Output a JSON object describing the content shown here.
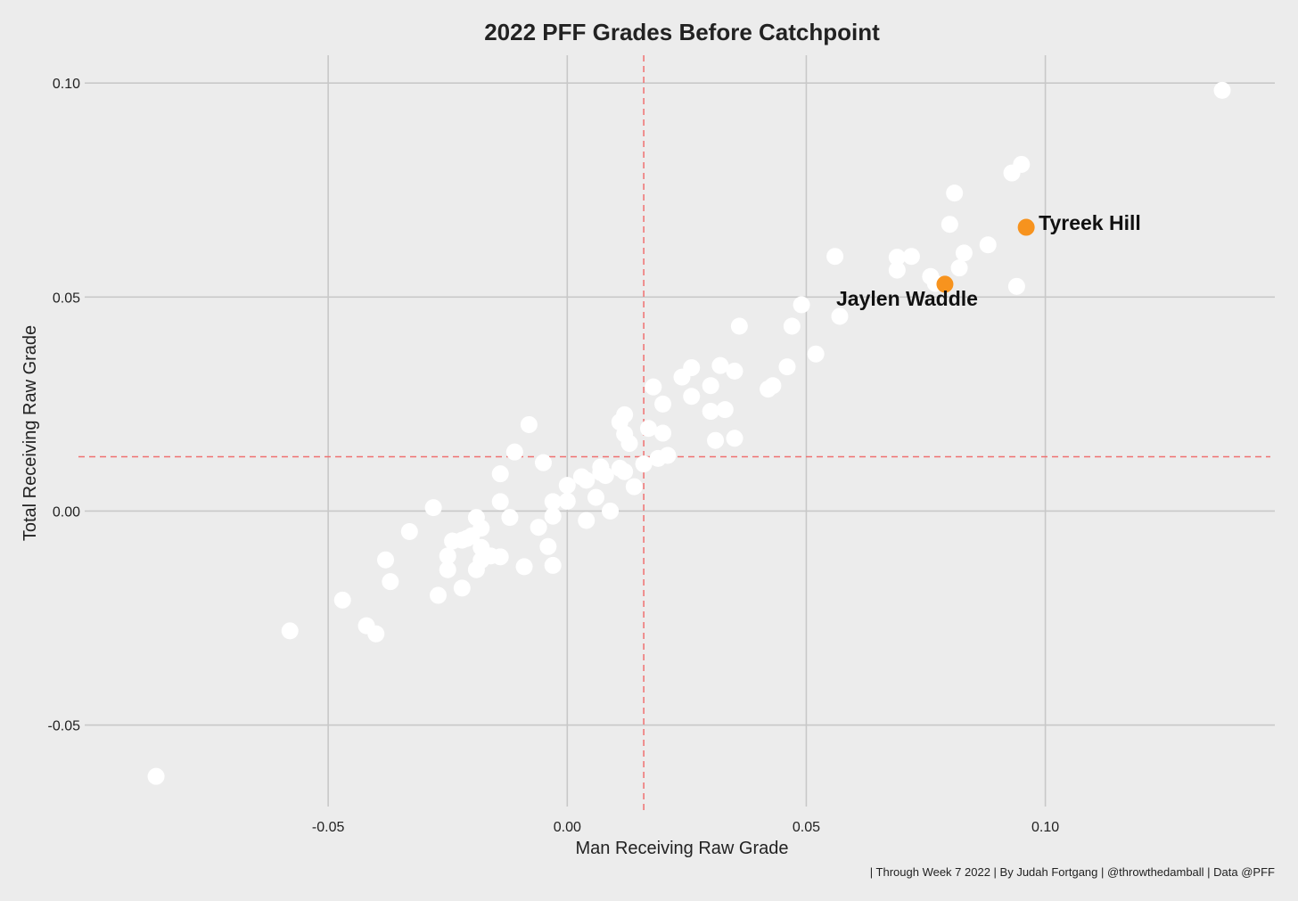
{
  "chart_data": {
    "type": "scatter",
    "title": "2022 PFF Grades Before Catchpoint",
    "xlabel": "Man Receiving Raw Grade",
    "ylabel": "Total Receiving Raw Grade",
    "caption": "| Through Week 7 2022 | By Judah Fortgang | @throwthedamball | Data @PFF",
    "xlim": [
      -0.1,
      0.148
    ],
    "ylim": [
      -0.068,
      0.1065
    ],
    "x_ticks": [
      {
        "value": -0.05,
        "label": "-0.05"
      },
      {
        "value": 0.0,
        "label": "0.00"
      },
      {
        "value": 0.05,
        "label": "0.05"
      },
      {
        "value": 0.1,
        "label": "0.10"
      }
    ],
    "y_ticks": [
      {
        "value": -0.05,
        "label": "-0.05"
      },
      {
        "value": 0.0,
        "label": "0.00"
      },
      {
        "value": 0.05,
        "label": "0.05"
      },
      {
        "value": 0.1,
        "label": "0.10"
      }
    ],
    "grid": true,
    "reference_lines": {
      "x": 0.016,
      "y": 0.0127,
      "color": "#f07070",
      "style": "dashed"
    },
    "colors": {
      "background": "#ececec",
      "grid": "#c8c8c8",
      "point": "#ffffff",
      "highlight": "#f7931e"
    },
    "points": [
      [
        -0.086,
        -0.062
      ],
      [
        -0.058,
        -0.028
      ],
      [
        -0.047,
        -0.0208
      ],
      [
        -0.042,
        -0.0268
      ],
      [
        -0.04,
        -0.0287
      ],
      [
        -0.038,
        -0.0114
      ],
      [
        -0.037,
        -0.0165
      ],
      [
        -0.033,
        -0.0048
      ],
      [
        -0.028,
        0.0008
      ],
      [
        -0.027,
        -0.0197
      ],
      [
        -0.025,
        -0.0105
      ],
      [
        -0.025,
        -0.0137
      ],
      [
        -0.024,
        -0.007
      ],
      [
        -0.022,
        -0.0068
      ],
      [
        -0.022,
        -0.018
      ],
      [
        -0.021,
        -0.0064
      ],
      [
        -0.02,
        -0.0058
      ],
      [
        -0.019,
        -0.0015
      ],
      [
        -0.019,
        -0.0137
      ],
      [
        -0.018,
        -0.0085
      ],
      [
        -0.018,
        -0.0115
      ],
      [
        -0.018,
        -0.004
      ],
      [
        -0.016,
        -0.0105
      ],
      [
        -0.014,
        -0.0107
      ],
      [
        -0.014,
        0.0087
      ],
      [
        -0.014,
        0.0022
      ],
      [
        -0.012,
        -0.0015
      ],
      [
        -0.011,
        0.0138
      ],
      [
        -0.009,
        -0.013
      ],
      [
        -0.008,
        0.0202
      ],
      [
        -0.006,
        -0.0038
      ],
      [
        -0.005,
        0.0113
      ],
      [
        -0.004,
        -0.0083
      ],
      [
        -0.003,
        0.0022
      ],
      [
        -0.003,
        -0.0012
      ],
      [
        -0.003,
        -0.0127
      ],
      [
        0.0,
        0.006
      ],
      [
        0.0,
        0.0023
      ],
      [
        0.003,
        0.008
      ],
      [
        0.004,
        0.0072
      ],
      [
        0.004,
        -0.0022
      ],
      [
        0.006,
        0.0032
      ],
      [
        0.007,
        0.009
      ],
      [
        0.007,
        0.0103
      ],
      [
        0.008,
        0.0083
      ],
      [
        0.009,
        0.0
      ],
      [
        0.011,
        0.0208
      ],
      [
        0.011,
        0.01
      ],
      [
        0.012,
        0.0225
      ],
      [
        0.012,
        0.018
      ],
      [
        0.012,
        0.0092
      ],
      [
        0.013,
        0.0158
      ],
      [
        0.014,
        0.0057
      ],
      [
        0.016,
        0.011
      ],
      [
        0.017,
        0.0193
      ],
      [
        0.018,
        0.029
      ],
      [
        0.019,
        0.0123
      ],
      [
        0.02,
        0.025
      ],
      [
        0.02,
        0.0182
      ],
      [
        0.021,
        0.013
      ],
      [
        0.024,
        0.0313
      ],
      [
        0.026,
        0.0268
      ],
      [
        0.026,
        0.0335
      ],
      [
        0.03,
        0.0293
      ],
      [
        0.03,
        0.0233
      ],
      [
        0.031,
        0.0165
      ],
      [
        0.032,
        0.034
      ],
      [
        0.033,
        0.0237
      ],
      [
        0.035,
        0.0327
      ],
      [
        0.035,
        0.017
      ],
      [
        0.036,
        0.0432
      ],
      [
        0.042,
        0.0285
      ],
      [
        0.043,
        0.0293
      ],
      [
        0.046,
        0.0337
      ],
      [
        0.047,
        0.0432
      ],
      [
        0.049,
        0.0482
      ],
      [
        0.052,
        0.0367
      ],
      [
        0.056,
        0.0595
      ],
      [
        0.057,
        0.0455
      ],
      [
        0.069,
        0.0593
      ],
      [
        0.069,
        0.0563
      ],
      [
        0.072,
        0.0595
      ],
      [
        0.076,
        0.0548
      ],
      [
        0.077,
        0.0532
      ],
      [
        0.08,
        0.067
      ],
      [
        0.081,
        0.0743
      ],
      [
        0.082,
        0.0568
      ],
      [
        0.083,
        0.0603
      ],
      [
        0.088,
        0.0622
      ],
      [
        0.093,
        0.079
      ],
      [
        0.094,
        0.0525
      ],
      [
        0.095,
        0.081
      ],
      [
        0.137,
        0.0983
      ]
    ],
    "highlighted": [
      {
        "name": "Tyreek Hill",
        "x": 0.096,
        "y": 0.0663
      },
      {
        "name": "Jaylen Waddle",
        "x": 0.079,
        "y": 0.053
      }
    ]
  }
}
